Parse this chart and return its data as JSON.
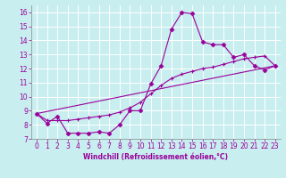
{
  "xlabel": "Windchill (Refroidissement éolien,°C)",
  "background_color": "#c8eef0",
  "grid_color": "#ffffff",
  "line_color": "#990099",
  "xlim": [
    -0.5,
    23.5
  ],
  "ylim": [
    7,
    16.5
  ],
  "xticks": [
    0,
    1,
    2,
    3,
    4,
    5,
    6,
    7,
    8,
    9,
    10,
    11,
    12,
    13,
    14,
    15,
    16,
    17,
    18,
    19,
    20,
    21,
    22,
    23
  ],
  "yticks": [
    7,
    8,
    9,
    10,
    11,
    12,
    13,
    14,
    15,
    16
  ],
  "line1_x": [
    0,
    1,
    2,
    3,
    4,
    5,
    6,
    7,
    8,
    9,
    10,
    11,
    12,
    13,
    14,
    15,
    16,
    17,
    18,
    19,
    20,
    21,
    22,
    23
  ],
  "line1_y": [
    8.8,
    8.1,
    8.6,
    7.4,
    7.4,
    7.4,
    7.5,
    7.4,
    8.0,
    9.0,
    9.0,
    10.9,
    12.2,
    14.8,
    16.0,
    15.9,
    13.9,
    13.7,
    13.7,
    12.8,
    13.0,
    12.2,
    11.9,
    12.2
  ],
  "line2_x": [
    0,
    1,
    2,
    3,
    4,
    5,
    6,
    7,
    8,
    9,
    10,
    11,
    12,
    13,
    14,
    15,
    16,
    17,
    18,
    19,
    20,
    21,
    22,
    23
  ],
  "line2_y": [
    8.8,
    8.3,
    8.3,
    8.3,
    8.4,
    8.5,
    8.6,
    8.7,
    8.9,
    9.2,
    9.6,
    10.2,
    10.8,
    11.3,
    11.6,
    11.8,
    12.0,
    12.1,
    12.3,
    12.5,
    12.7,
    12.8,
    12.9,
    12.2
  ],
  "line3_x": [
    0,
    23
  ],
  "line3_y": [
    8.8,
    12.2
  ],
  "tick_fontsize": 5.5,
  "xlabel_fontsize": 5.5
}
